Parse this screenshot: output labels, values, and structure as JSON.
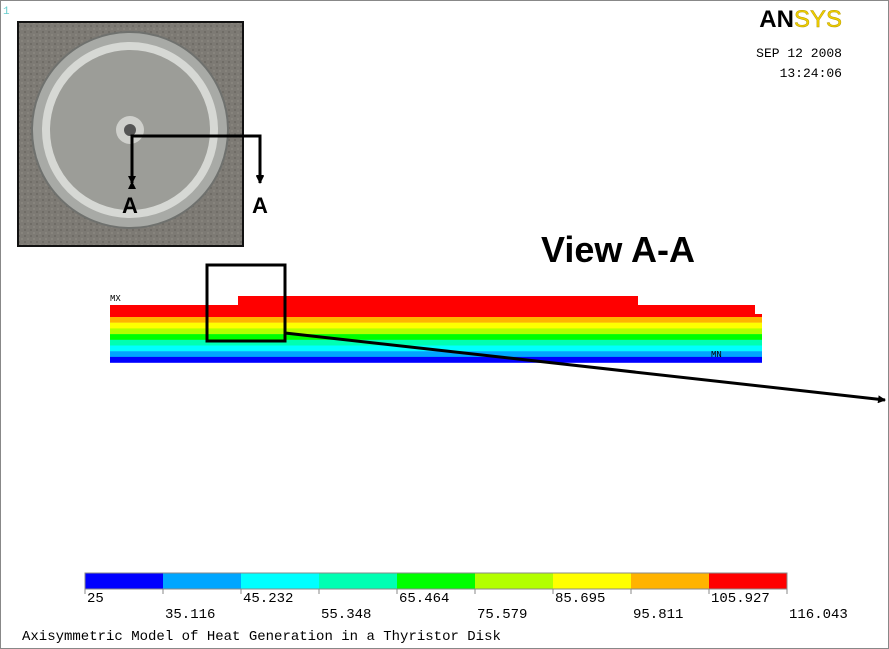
{
  "window_number": "1",
  "logo": {
    "an": "AN",
    "sys": "SYS"
  },
  "date": "SEP 12 2008",
  "time": "13:24:06",
  "photo": {
    "label_left": "A",
    "label_right": "A"
  },
  "view_title": "View A-A",
  "model": {
    "max_label": "MX",
    "min_label": "MN"
  },
  "legend": {
    "colors": [
      "#0000ff",
      "#00a6ff",
      "#00ffff",
      "#00ffb3",
      "#00ff00",
      "#b3ff00",
      "#ffff00",
      "#ffb300",
      "#ff0000"
    ],
    "labels": [
      25,
      35.116,
      45.232,
      55.348,
      65.464,
      75.579,
      85.695,
      95.811,
      105.927,
      116.043
    ]
  },
  "caption": "Axisymmetric Model of Heat Generation in a Thyristor Disk"
}
